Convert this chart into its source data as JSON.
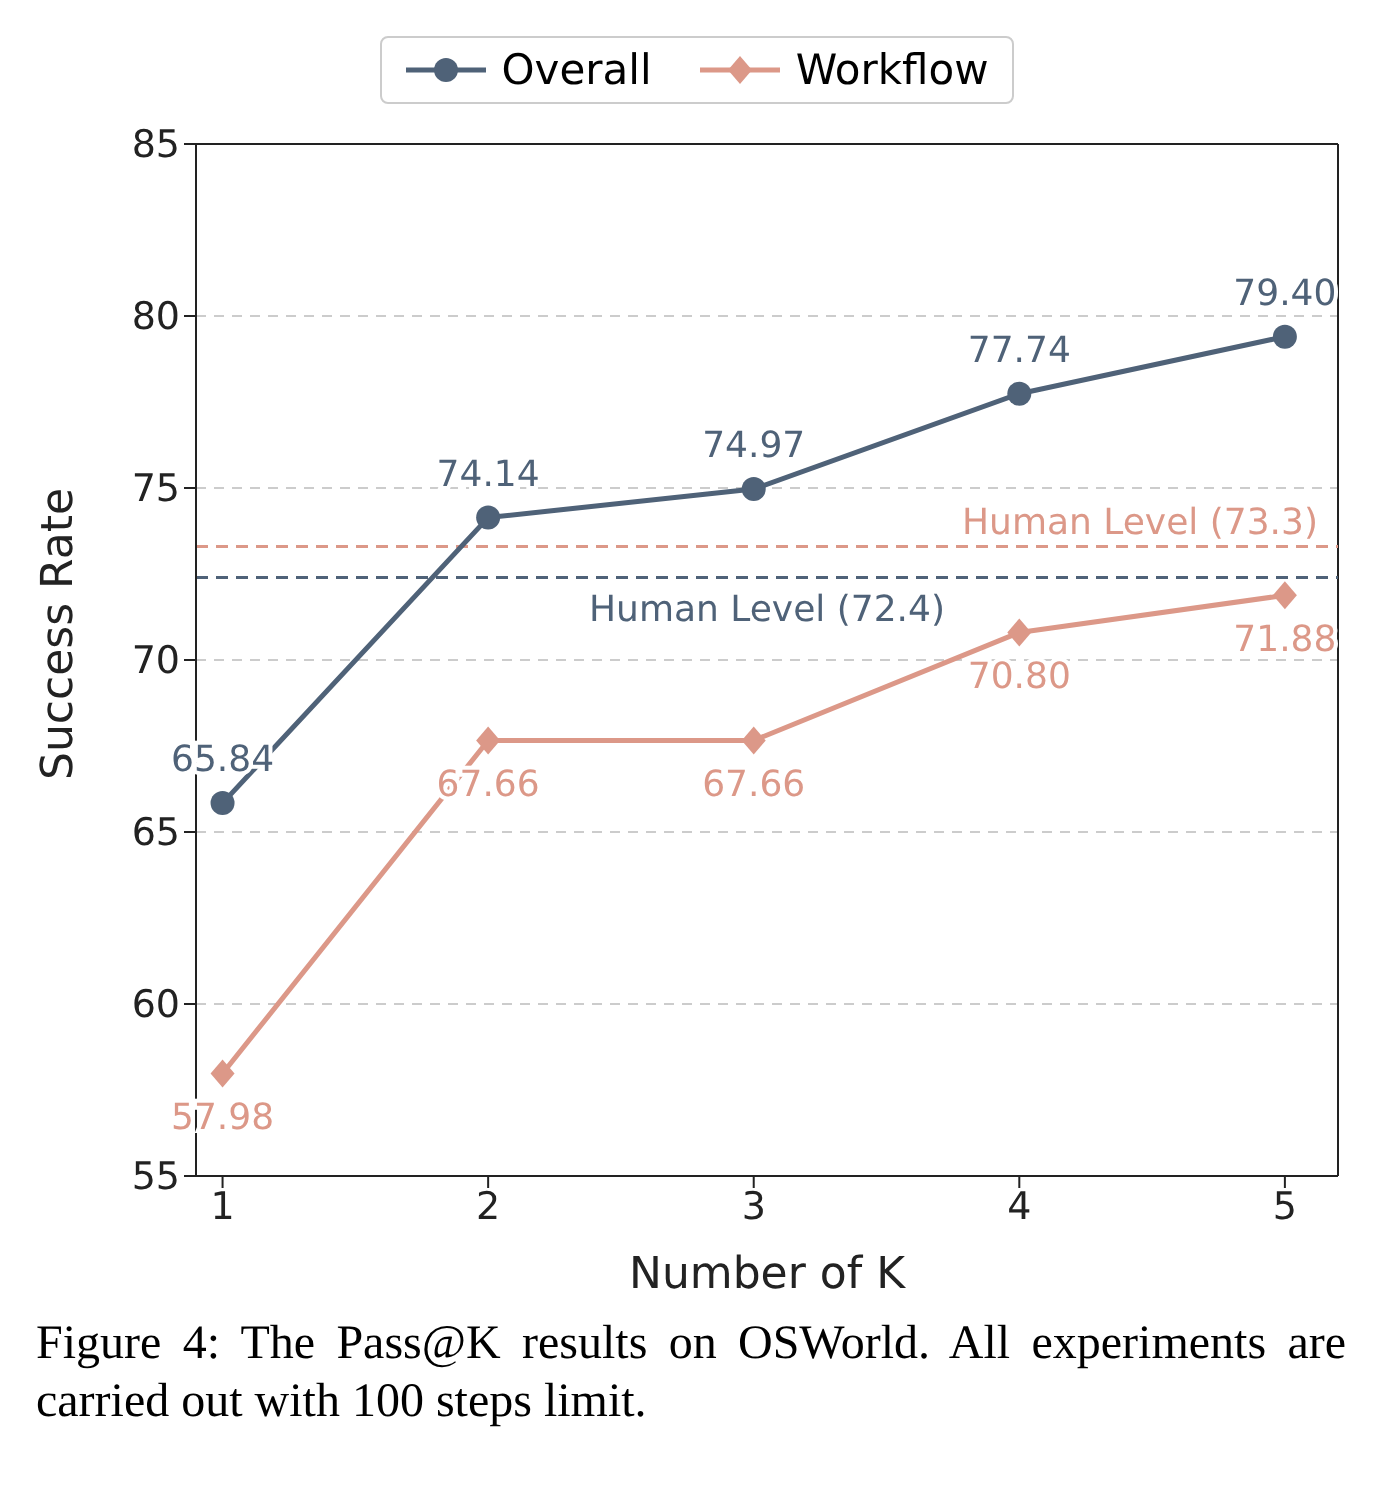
{
  "chart_data": {
    "type": "line",
    "xlabel": "Number of K",
    "ylabel": "Success Rate",
    "x": [
      1,
      2,
      3,
      4,
      5
    ],
    "series": [
      {
        "name": "Overall",
        "color": "#4f6278",
        "marker": "circle",
        "values": [
          65.84,
          74.14,
          74.97,
          77.74,
          79.4
        ],
        "value_labels": [
          "65.84",
          "74.14",
          "74.97",
          "77.74",
          "79.40"
        ]
      },
      {
        "name": "Workflow",
        "color": "#dc9888",
        "marker": "diamond",
        "values": [
          57.98,
          67.66,
          67.66,
          70.8,
          71.88
        ],
        "value_labels": [
          "57.98",
          "67.66",
          "67.66",
          "70.80",
          "71.88"
        ]
      }
    ],
    "xlim": [
      0.9,
      5.2
    ],
    "xticks": [
      1,
      2,
      3,
      4,
      5
    ],
    "ylim": [
      55,
      85
    ],
    "yticks": [
      55,
      60,
      65,
      70,
      75,
      80,
      85
    ],
    "ref_lines": [
      {
        "axis": "y",
        "value": 73.3,
        "label": "Human Level (73.3)",
        "color": "#dc9888",
        "line_style": "dashed"
      },
      {
        "axis": "y",
        "value": 72.4,
        "label": "Human Level (72.4)",
        "color": "#4f6278",
        "line_style": "dashed"
      }
    ],
    "grid": "y",
    "legend": "top",
    "line_style": "solid",
    "annotations": [
      "Figure 4: The Pass@K results on OSWorld. All experiments are carried out with 100 steps limit."
    ]
  }
}
